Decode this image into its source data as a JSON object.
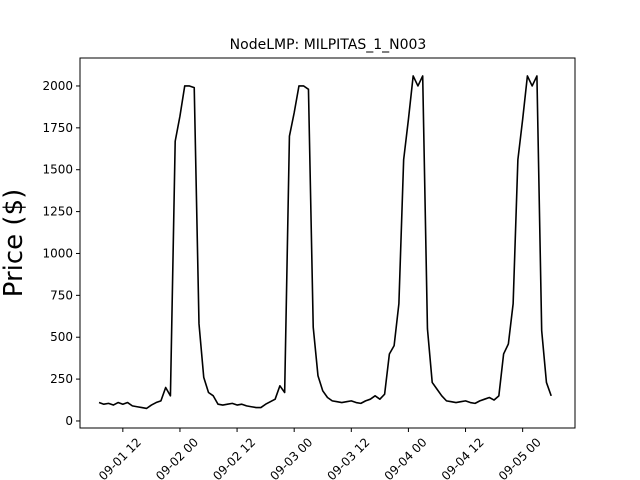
{
  "chart_data": {
    "type": "line",
    "title": "NodeLMP: MILPITAS_1_N003",
    "y_label": "Price ($)",
    "color": "#000000",
    "x": [
      "09-01 07",
      "09-01 08",
      "09-01 09",
      "09-01 10",
      "09-01 11",
      "09-01 12",
      "09-01 13",
      "09-01 14",
      "09-01 15",
      "09-01 16",
      "09-01 17",
      "09-01 18",
      "09-01 19",
      "09-01 20",
      "09-01 21",
      "09-01 22",
      "09-01 23",
      "09-02 00",
      "09-02 01",
      "09-02 02",
      "09-02 03",
      "09-02 04",
      "09-02 05",
      "09-02 06",
      "09-02 07",
      "09-02 08",
      "09-02 09",
      "09-02 10",
      "09-02 11",
      "09-02 12",
      "09-02 13",
      "09-02 14",
      "09-02 15",
      "09-02 16",
      "09-02 17",
      "09-02 18",
      "09-02 19",
      "09-02 20",
      "09-02 21",
      "09-02 22",
      "09-02 23",
      "09-03 00",
      "09-03 01",
      "09-03 02",
      "09-03 03",
      "09-03 04",
      "09-03 05",
      "09-03 06",
      "09-03 07",
      "09-03 08",
      "09-03 09",
      "09-03 10",
      "09-03 11",
      "09-03 12",
      "09-03 13",
      "09-03 14",
      "09-03 15",
      "09-03 16",
      "09-03 17",
      "09-03 18",
      "09-03 19",
      "09-03 20",
      "09-03 21",
      "09-03 22",
      "09-03 23",
      "09-04 00",
      "09-04 01",
      "09-04 02",
      "09-04 03",
      "09-04 04",
      "09-04 05",
      "09-04 06",
      "09-04 07",
      "09-04 08",
      "09-04 09",
      "09-04 10",
      "09-04 11",
      "09-04 12",
      "09-04 13",
      "09-04 14",
      "09-04 15",
      "09-04 16",
      "09-04 17",
      "09-04 18",
      "09-04 19",
      "09-04 20",
      "09-04 21",
      "09-04 22",
      "09-04 23",
      "09-05 00",
      "09-05 01",
      "09-05 02",
      "09-05 03",
      "09-05 04",
      "09-05 05",
      "09-05 06"
    ],
    "values": [
      110,
      100,
      105,
      95,
      110,
      100,
      110,
      90,
      85,
      80,
      75,
      95,
      110,
      120,
      200,
      150,
      1670,
      1820,
      2000,
      2000,
      1990,
      580,
      260,
      170,
      150,
      100,
      95,
      100,
      105,
      95,
      100,
      90,
      85,
      80,
      80,
      100,
      115,
      130,
      210,
      170,
      1700,
      1840,
      2000,
      2000,
      1980,
      560,
      270,
      180,
      140,
      120,
      115,
      110,
      115,
      120,
      110,
      105,
      120,
      130,
      150,
      130,
      160,
      400,
      450,
      700,
      1560,
      1800,
      2060,
      2000,
      2060,
      550,
      230,
      190,
      150,
      120,
      115,
      110,
      115,
      120,
      110,
      105,
      120,
      130,
      140,
      125,
      150,
      400,
      460,
      700,
      1560,
      1800,
      2060,
      2000,
      2060,
      540,
      230,
      150
    ],
    "xlim": [
      "09-01 03",
      "09-05 11"
    ],
    "xticks": [
      "09-01 12",
      "09-02 00",
      "09-02 12",
      "09-03 00",
      "09-03 12",
      "09-04 00",
      "09-04 12",
      "09-05 00"
    ],
    "ylim": [
      -42,
      2167
    ],
    "yticks": [
      0,
      250,
      500,
      750,
      1000,
      1250,
      1500,
      1750,
      2000
    ],
    "grid": false
  }
}
